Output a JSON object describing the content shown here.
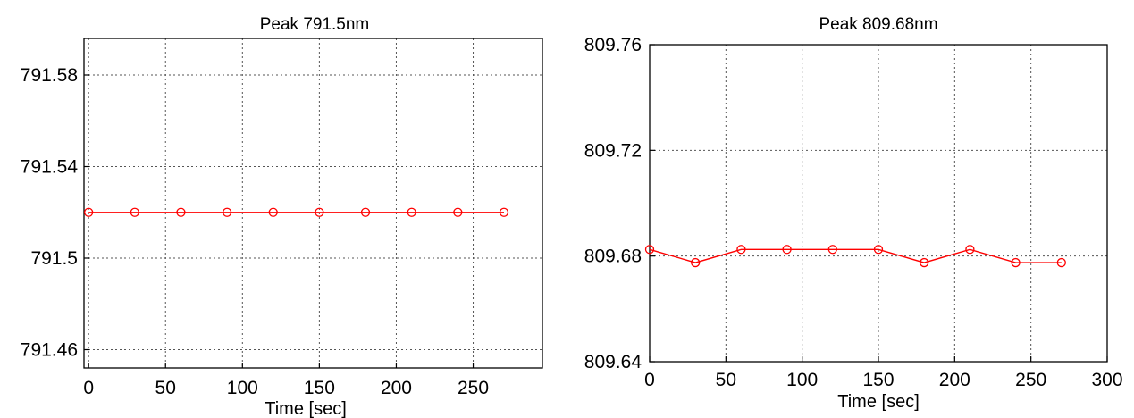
{
  "chart_data": [
    {
      "type": "line",
      "title": "Peak 791.5nm",
      "xlabel": "Time [sec]",
      "ylabel": "",
      "xlim": [
        -3,
        295
      ],
      "ylim": [
        791.452,
        791.596
      ],
      "xticks": [
        0,
        50,
        100,
        150,
        200,
        250
      ],
      "xtick_labels": [
        "0",
        "50",
        "100",
        "150",
        "200",
        "250"
      ],
      "yticks": [
        791.46,
        791.5,
        791.54,
        791.58
      ],
      "ytick_labels": [
        "791.46",
        "791.5",
        "791.54",
        "791.58"
      ],
      "grid": true,
      "color": "#ff0000",
      "marker": "circle",
      "x": [
        0,
        30,
        60,
        90,
        120,
        150,
        180,
        210,
        240,
        270
      ],
      "y": [
        791.52,
        791.52,
        791.52,
        791.52,
        791.52,
        791.52,
        791.52,
        791.52,
        791.52,
        791.52
      ]
    },
    {
      "type": "line",
      "title": "Peak 809.68nm",
      "xlabel": "Time [sec]",
      "ylabel": "",
      "xlim": [
        0,
        300
      ],
      "ylim": [
        809.64,
        809.76
      ],
      "xticks": [
        0,
        50,
        100,
        150,
        200,
        250,
        300
      ],
      "xtick_labels": [
        "0",
        "50",
        "100",
        "150",
        "200",
        "250",
        "300"
      ],
      "yticks": [
        809.64,
        809.68,
        809.72,
        809.76
      ],
      "ytick_labels": [
        "809.64",
        "809.68",
        "809.72",
        "809.76"
      ],
      "grid": true,
      "color": "#ff0000",
      "marker": "circle",
      "x": [
        0,
        30,
        60,
        90,
        120,
        150,
        180,
        210,
        240,
        270
      ],
      "y": [
        809.6825,
        809.6775,
        809.6825,
        809.6825,
        809.6825,
        809.6825,
        809.6775,
        809.6825,
        809.6775,
        809.6775
      ]
    }
  ]
}
